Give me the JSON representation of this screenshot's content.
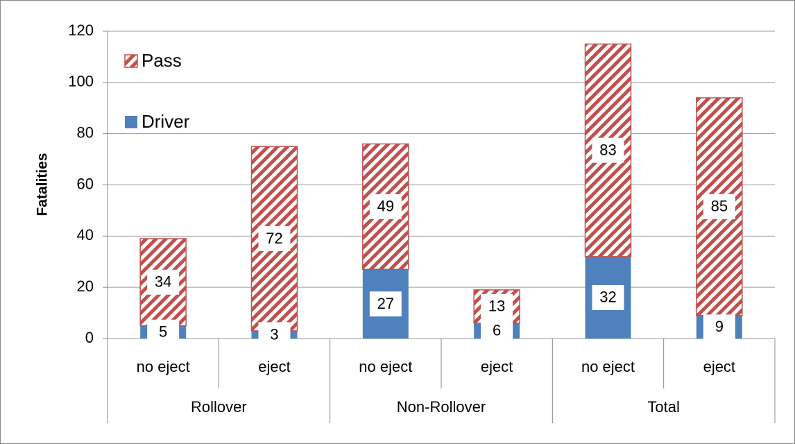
{
  "chart_data": {
    "type": "stacked_bar",
    "y_label": "Fatalities",
    "categories": [
      "no eject",
      "eject",
      "no eject",
      "eject",
      "no eject",
      "eject"
    ],
    "category_groups": [
      "Rollover",
      "Non-Rollover",
      "Total"
    ],
    "series": [
      {
        "name": "Driver",
        "color": "#4f81bd",
        "pattern": "solid",
        "values": [
          5,
          3,
          27,
          6,
          32,
          9
        ]
      },
      {
        "name": "Pass",
        "color": "#c0504d",
        "pattern": "hatch",
        "values": [
          34,
          72,
          49,
          13,
          83,
          85
        ]
      }
    ],
    "ylim": [
      0,
      120
    ],
    "yticks": [
      0,
      20,
      40,
      60,
      80,
      100,
      120
    ],
    "grid": true,
    "legend": "top-left"
  }
}
